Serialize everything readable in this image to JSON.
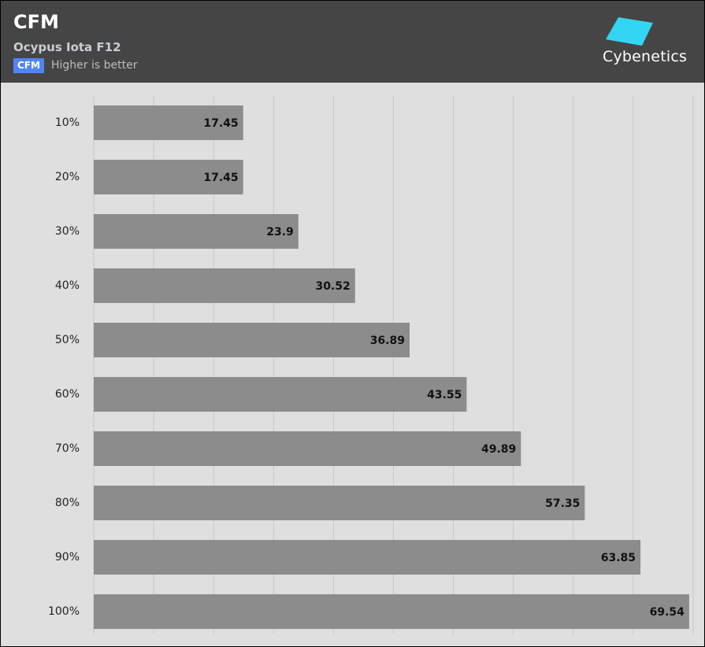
{
  "header": {
    "title": "CFM",
    "subtitle": "Ocypus Iota F12",
    "badge": "CFM",
    "note": "Higher is better",
    "logo_text": "Cybenetics"
  },
  "colors": {
    "header_bg": "#454545",
    "plot_bg": "#dfdfdf",
    "bar": "#8c8c8c",
    "badge": "#4f86f7",
    "logo": "#33d6f2",
    "grid": "#c7c7c7"
  },
  "chart_data": {
    "type": "bar",
    "orientation": "horizontal",
    "title": "CFM",
    "categories": [
      "10%",
      "20%",
      "30%",
      "40%",
      "50%",
      "60%",
      "70%",
      "80%",
      "90%",
      "100%"
    ],
    "values": [
      17.45,
      17.45,
      23.9,
      30.52,
      36.89,
      43.55,
      49.89,
      57.35,
      63.85,
      69.54
    ],
    "data_labels": [
      "17.45",
      "17.45",
      "23.9",
      "30.52",
      "36.89",
      "43.55",
      "49.89",
      "57.35",
      "63.85",
      "69.54"
    ],
    "xlim": [
      0,
      70
    ],
    "grid": true,
    "legend": "none"
  }
}
